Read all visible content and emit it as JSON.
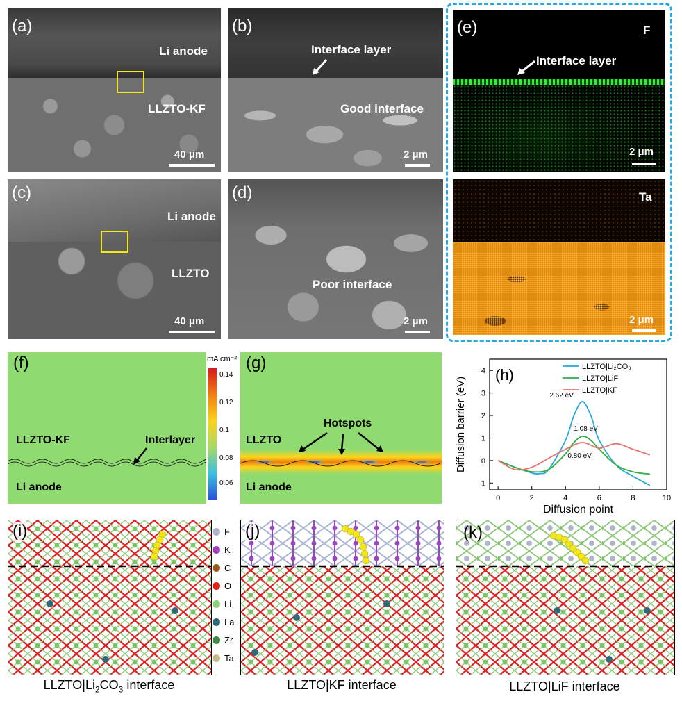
{
  "sem": {
    "a": {
      "label": "(a)",
      "top": "Li anode",
      "bottom": "LLZTO-KF",
      "scale": "40 μm"
    },
    "b": {
      "label": "(b)",
      "arrow": "Interface layer",
      "note": "Good interface",
      "scale": "2 μm"
    },
    "c": {
      "label": "(c)",
      "top": "Li anode",
      "bottom": "LLZTO",
      "scale": "40 μm"
    },
    "d": {
      "label": "(d)",
      "note": "Poor interface",
      "scale": "2 μm"
    },
    "e": {
      "label": "(e)",
      "elem1": "F",
      "arrow": "Interface layer",
      "scale1": "2 μm",
      "elem2": "Ta",
      "scale2": "2 μm"
    }
  },
  "sim": {
    "f": {
      "label": "(f)",
      "top": "LLZTO-KF",
      "bottom": "Li anode",
      "interlayer": "Interlayer"
    },
    "colorbar": {
      "unit": "mA cm⁻²",
      "ticks": [
        "0.14",
        "0.12",
        "0.1",
        "0.08",
        "0.06"
      ]
    },
    "g": {
      "label": "(g)",
      "top": "LLZTO",
      "bottom": "Li anode",
      "hotspots": "Hotspots"
    }
  },
  "chart_data": {
    "type": "line",
    "label": "(h)",
    "xlabel": "Diffusion point",
    "ylabel": "Diffusion barrier (eV)",
    "xlim": [
      -0.5,
      10
    ],
    "ylim": [
      -1.3,
      4.5
    ],
    "xticks": [
      0,
      2,
      4,
      6,
      8,
      10
    ],
    "yticks": [
      -1,
      0,
      1,
      2,
      3,
      4
    ],
    "legend_position": "top-right",
    "series": [
      {
        "name": "LLZTO|Li₂CO₃",
        "color": "#29a7db",
        "annotation": "2.62 eV",
        "x": [
          0,
          1,
          2,
          2.5,
          3,
          4,
          4.5,
          5,
          5.5,
          6,
          7,
          8,
          9
        ],
        "y": [
          0,
          -0.3,
          -0.55,
          -0.58,
          -0.4,
          0.9,
          2.0,
          2.62,
          2.0,
          0.9,
          -0.2,
          -0.7,
          -1.1
        ]
      },
      {
        "name": "LLZTO|LiF",
        "color": "#2eae3c",
        "annotation": "1.08 eV",
        "x": [
          0,
          1,
          2,
          3,
          4,
          4.5,
          5,
          5.5,
          6,
          7,
          8,
          9
        ],
        "y": [
          0,
          -0.3,
          -0.5,
          -0.4,
          0.3,
          0.8,
          1.08,
          0.9,
          0.5,
          -0.2,
          -0.5,
          -0.6
        ]
      },
      {
        "name": "LLZTO|KF",
        "color": "#e57373",
        "annotation": "0.80 eV",
        "x": [
          0,
          1,
          2,
          3,
          4,
          5,
          6,
          7,
          8,
          9
        ],
        "y": [
          0,
          -0.4,
          -0.3,
          0.1,
          0.5,
          0.8,
          0.55,
          0.75,
          0.5,
          0.25
        ]
      }
    ]
  },
  "atoms": {
    "i": {
      "label": "(i)",
      "caption_pre": "LLZTO|Li",
      "caption_sub1": "2",
      "caption_mid": "CO",
      "caption_sub2": "3",
      "caption_post": " interface"
    },
    "j": {
      "label": "(j)",
      "caption": "LLZTO|KF interface"
    },
    "k": {
      "label": "(k)",
      "caption": "LLZTO|LiF interface"
    },
    "legend": [
      "F",
      "K",
      "C",
      "O",
      "Li",
      "La",
      "Zr",
      "Ta"
    ],
    "legend_colors": [
      "#b0b5cc",
      "#9a45c2",
      "#9a5b1f",
      "#e0241b",
      "#8fce7d",
      "#2e6a77",
      "#3f8a45",
      "#c9b98a"
    ]
  },
  "colors": {
    "dashed_box": "#27a9e1",
    "marker": "#f3e61a",
    "li_path": "#f3e61a"
  }
}
